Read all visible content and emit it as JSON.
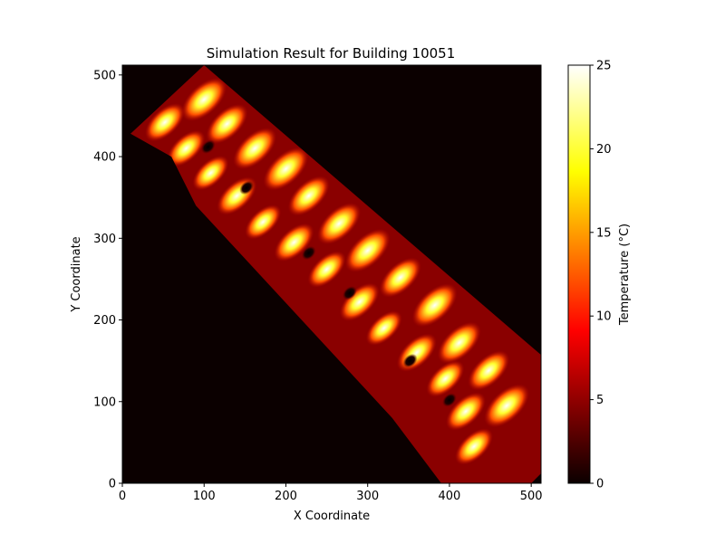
{
  "chart_data": {
    "type": "heatmap",
    "title": "Simulation Result for Building 10051",
    "xlabel": "X Coordinate",
    "ylabel": "Y Coordinate",
    "xlim": [
      0,
      512
    ],
    "ylim": [
      0,
      512
    ],
    "x_ticks": [
      0,
      100,
      200,
      300,
      400,
      500
    ],
    "y_ticks": [
      0,
      100,
      200,
      300,
      400,
      500
    ],
    "colorbar": {
      "label": "Temperature (°C)",
      "range": [
        0,
        25
      ],
      "ticks": [
        0,
        5,
        10,
        15,
        20,
        25
      ],
      "colormap": "hot"
    },
    "background_value": 0,
    "building_outline": [
      [
        10,
        428
      ],
      [
        100,
        512
      ],
      [
        590,
        90
      ],
      [
        500,
        0
      ],
      [
        390,
        0
      ],
      [
        330,
        80
      ],
      [
        90,
        340
      ],
      [
        60,
        400
      ]
    ],
    "rooms": [
      {
        "x": 52,
        "y": 442,
        "value": 22
      },
      {
        "x": 100,
        "y": 470,
        "value": 25
      },
      {
        "x": 78,
        "y": 410,
        "value": 21
      },
      {
        "x": 128,
        "y": 440,
        "value": 23
      },
      {
        "x": 108,
        "y": 380,
        "value": 20
      },
      {
        "x": 162,
        "y": 410,
        "value": 24
      },
      {
        "x": 140,
        "y": 352,
        "value": 22
      },
      {
        "x": 200,
        "y": 385,
        "value": 25
      },
      {
        "x": 172,
        "y": 320,
        "value": 20
      },
      {
        "x": 228,
        "y": 352,
        "value": 23
      },
      {
        "x": 210,
        "y": 295,
        "value": 22
      },
      {
        "x": 265,
        "y": 318,
        "value": 24
      },
      {
        "x": 250,
        "y": 262,
        "value": 21
      },
      {
        "x": 300,
        "y": 285,
        "value": 25
      },
      {
        "x": 290,
        "y": 222,
        "value": 22
      },
      {
        "x": 340,
        "y": 252,
        "value": 23
      },
      {
        "x": 320,
        "y": 190,
        "value": 20
      },
      {
        "x": 382,
        "y": 218,
        "value": 25
      },
      {
        "x": 360,
        "y": 160,
        "value": 22
      },
      {
        "x": 412,
        "y": 172,
        "value": 24
      },
      {
        "x": 395,
        "y": 128,
        "value": 21
      },
      {
        "x": 448,
        "y": 138,
        "value": 23
      },
      {
        "x": 420,
        "y": 88,
        "value": 22
      },
      {
        "x": 470,
        "y": 95,
        "value": 25
      },
      {
        "x": 430,
        "y": 45,
        "value": 21
      }
    ],
    "cold_spots": [
      {
        "x": 105,
        "y": 412,
        "value": 0
      },
      {
        "x": 152,
        "y": 362,
        "value": 0
      },
      {
        "x": 228,
        "y": 282,
        "value": 0
      },
      {
        "x": 278,
        "y": 233,
        "value": 0
      },
      {
        "x": 352,
        "y": 150,
        "value": 0
      },
      {
        "x": 400,
        "y": 102,
        "value": 0
      }
    ],
    "stubs": [
      {
        "x": 90,
        "y": 345
      },
      {
        "x": 148,
        "y": 280
      },
      {
        "x": 212,
        "y": 212
      },
      {
        "x": 275,
        "y": 148
      },
      {
        "x": 335,
        "y": 82
      }
    ]
  }
}
